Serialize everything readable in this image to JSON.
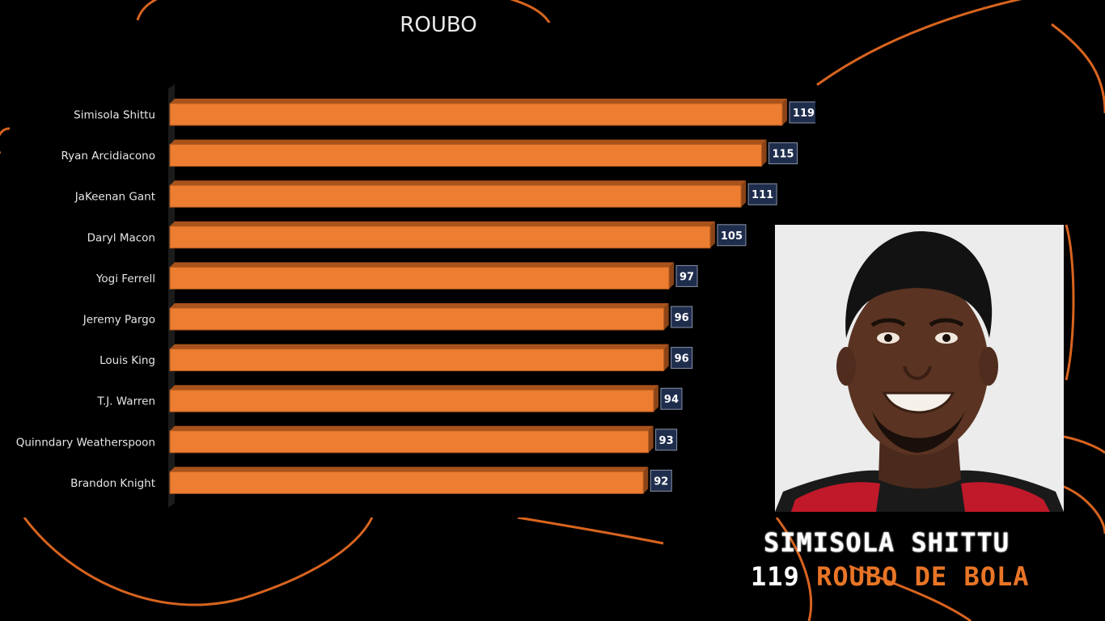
{
  "chart_data": {
    "type": "bar",
    "orientation": "horizontal",
    "title": "ROUBO",
    "categories": [
      "Simisola Shittu",
      "Ryan Arcidiacono",
      "JaKeenan Gant",
      "Daryl Macon",
      "Yogi Ferrell",
      "Jeremy Pargo",
      "Louis King",
      "T.J. Warren",
      "Quinndary Weatherspoon",
      "Brandon Knight"
    ],
    "values": [
      119,
      115,
      111,
      105,
      97,
      96,
      96,
      94,
      93,
      92
    ],
    "xlim": [
      0,
      119
    ],
    "grid": false,
    "data_labels": true,
    "bar_color": "#ed7d31"
  },
  "highlight": {
    "name": "SIMISOLA SHITTU",
    "value": "119",
    "label": "ROUBO DE BOLA"
  },
  "colors": {
    "background": "#000000",
    "accent": "#e87526",
    "label_box": "#1f2d4d"
  }
}
